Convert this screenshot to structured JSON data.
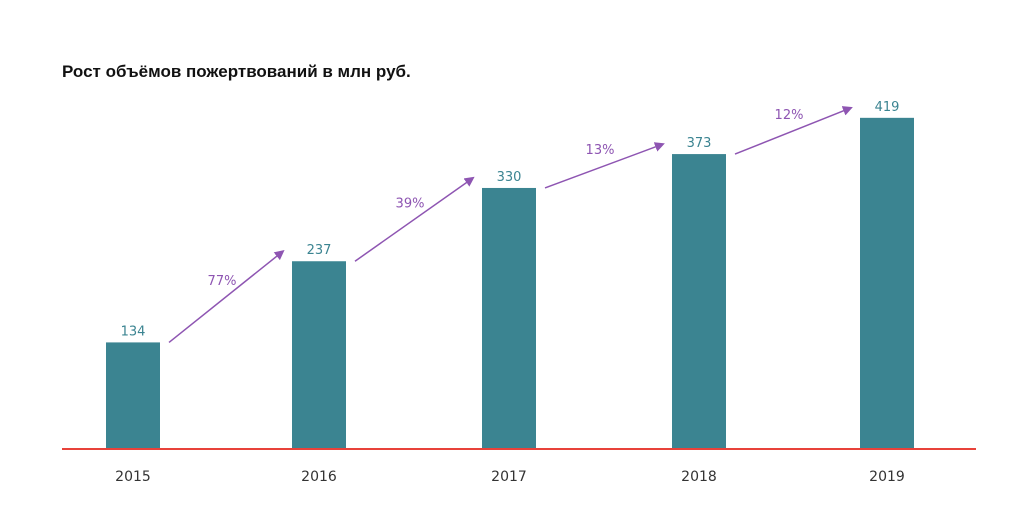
{
  "chart_data": {
    "type": "bar",
    "title": "Рост объёмов пожертвований в млн руб.",
    "categories": [
      "2015",
      "2016",
      "2017",
      "2018",
      "2019"
    ],
    "values": [
      134,
      237,
      330,
      373,
      419
    ],
    "growth_labels": [
      "77%",
      "39%",
      "13%",
      "12%"
    ],
    "ylim": [
      0,
      440
    ],
    "grid": false,
    "colors": {
      "bar": "#3b8491",
      "value_label": "#3b8491",
      "growth": "#8e55b2",
      "baseline": "#e8423a",
      "tick_label": "#333333"
    }
  }
}
